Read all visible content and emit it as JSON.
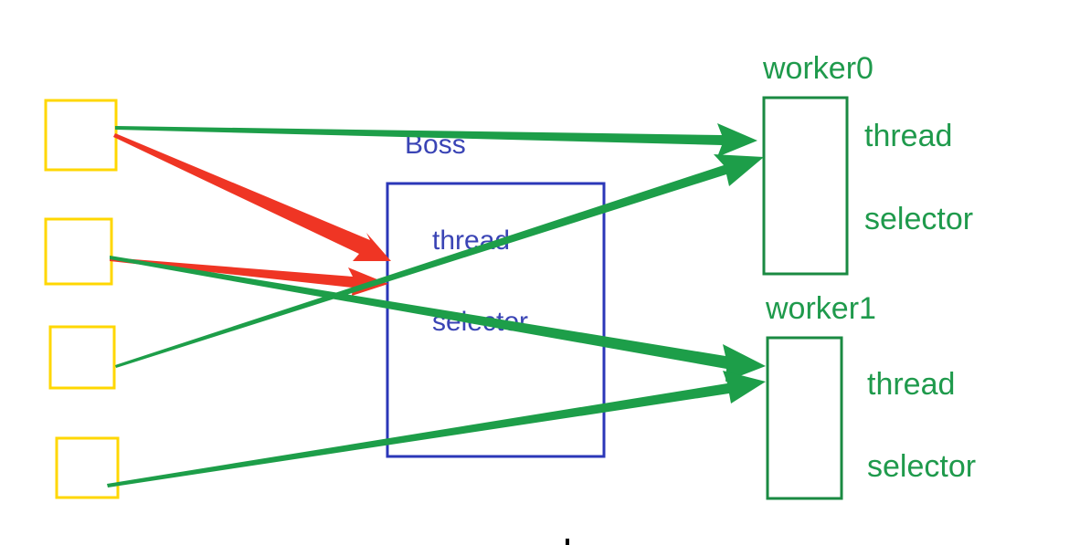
{
  "colors": {
    "client": "#ffd700",
    "boss": "#2b37b8",
    "worker": "#1a9a4a",
    "accept_arrow": "#ef3524",
    "dispatch_arrow": "#1d9e49"
  },
  "clients": [
    {
      "id": "client-0"
    },
    {
      "id": "client-1"
    },
    {
      "id": "client-2"
    },
    {
      "id": "client-3"
    }
  ],
  "boss": {
    "title": "Boss",
    "thread_label": "thread",
    "selector_label": "selector"
  },
  "workers": [
    {
      "title": "worker0",
      "thread_label": "thread",
      "selector_label": "selector"
    },
    {
      "title": "worker1",
      "thread_label": "thread",
      "selector_label": "selector"
    }
  ],
  "connections": [
    {
      "from": "client-0",
      "to": "boss",
      "kind": "accept"
    },
    {
      "from": "client-1",
      "to": "boss",
      "kind": "accept"
    },
    {
      "from": "client-0",
      "to": "worker0",
      "kind": "dispatch"
    },
    {
      "from": "client-2",
      "to": "worker0",
      "kind": "dispatch"
    },
    {
      "from": "client-1",
      "to": "worker1",
      "kind": "dispatch"
    },
    {
      "from": "client-3",
      "to": "worker1",
      "kind": "dispatch"
    }
  ]
}
